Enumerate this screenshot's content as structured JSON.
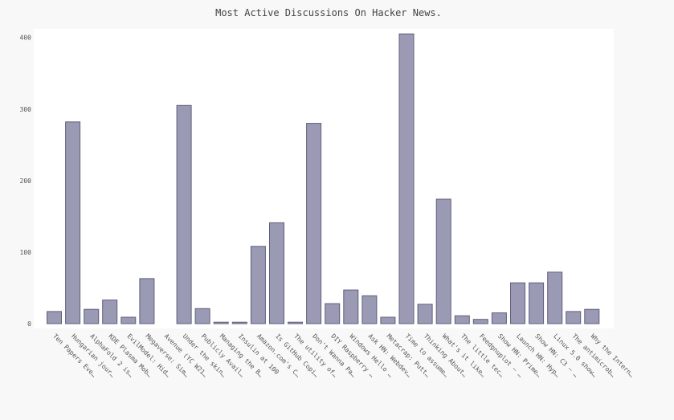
{
  "chart_data": {
    "type": "bar",
    "title": "Most Active Discussions On Hacker News.",
    "xlabel": "",
    "ylabel": "",
    "ylim": [
      0,
      412
    ],
    "yticks": [
      0,
      100,
      200,
      300,
      400
    ],
    "grid": false,
    "legend": "none",
    "bar_color": "#9a9ab4",
    "bar_edge_color": "#5f5f7c",
    "plot_background": "#ffffff",
    "page_background": "#f8f8f8",
    "categories": [
      "Ten Papers Eve…",
      "Hungarian jour…",
      "AlphaFold 2 is…",
      "KDE Plasma Mob…",
      "EvilModel: Hid…",
      "Megaverse: Sim…",
      "Avenue (YC W21…",
      "Under the skin…",
      "Publicly Avail…",
      "Managing the B…",
      "Insulin at 100",
      "Amazon.com's C…",
      "Is GitHub Copi…",
      "The utility of…",
      "Don't Wanna Pa…",
      "DIY Raspberry …",
      "Windows Hello …",
      "Ask HN: Webdev…",
      "Metacrap: Putt…",
      "Time to assume…",
      "Thinking About…",
      "What's it like…",
      "The little tec…",
      "Feedgnuplot – …",
      "Show HN: Prime…",
      "Launch HN: Hyp…",
      "Show HN: C3 – …",
      "Linux 5.0 show…",
      "The antimicrob…",
      "Why the Intern…"
    ],
    "values": [
      17,
      282,
      20,
      33,
      9,
      63,
      0,
      305,
      21,
      2,
      2,
      108,
      141,
      2,
      280,
      28,
      47,
      39,
      9,
      405,
      27,
      174,
      11,
      6,
      15,
      57,
      57,
      72,
      17,
      20
    ]
  }
}
